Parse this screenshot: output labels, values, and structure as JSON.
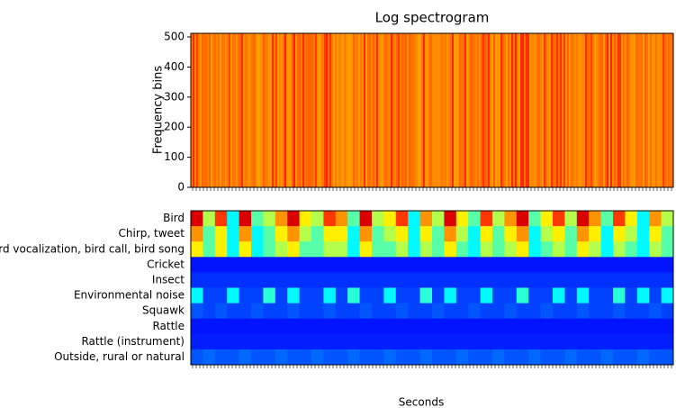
{
  "chart_data": [
    {
      "type": "spectrogram",
      "title": "Log spectrogram",
      "ylabel": "Frequency bins",
      "ylim": [
        0,
        512
      ],
      "yticks": [
        0,
        100,
        200,
        300,
        400,
        500
      ],
      "colormap": "autumn"
    },
    {
      "type": "heatmap",
      "xlabel": "Seconds",
      "colormap": "jet",
      "vlim": [
        0,
        1
      ],
      "series": [
        {
          "name": "Bird",
          "values": [
            0.9,
            0.5,
            0.8,
            0.3,
            0.9,
            0.4,
            0.5,
            0.7,
            0.9,
            0.6,
            0.5,
            0.8,
            0.7,
            0.4,
            0.9,
            0.5,
            0.6,
            0.8,
            0.3,
            0.7,
            0.5,
            0.9,
            0.6,
            0.4,
            0.8,
            0.5,
            0.7,
            0.9,
            0.4,
            0.6,
            0.8,
            0.5,
            0.9,
            0.7,
            0.4,
            0.8,
            0.6,
            0.3,
            0.7,
            0.5
          ]
        },
        {
          "name": "Chirp, tweet",
          "values": [
            0.7,
            0.4,
            0.6,
            0.3,
            0.7,
            0.3,
            0.4,
            0.6,
            0.7,
            0.5,
            0.4,
            0.6,
            0.6,
            0.3,
            0.7,
            0.4,
            0.5,
            0.6,
            0.3,
            0.6,
            0.4,
            0.7,
            0.5,
            0.3,
            0.6,
            0.4,
            0.6,
            0.7,
            0.3,
            0.5,
            0.6,
            0.4,
            0.7,
            0.6,
            0.3,
            0.6,
            0.5,
            0.3,
            0.6,
            0.4
          ]
        },
        {
          "name": "Bird vocalization, bird call, bird song",
          "values": [
            0.6,
            0.4,
            0.6,
            0.3,
            0.6,
            0.3,
            0.4,
            0.5,
            0.6,
            0.4,
            0.4,
            0.5,
            0.5,
            0.3,
            0.6,
            0.4,
            0.4,
            0.5,
            0.3,
            0.5,
            0.4,
            0.6,
            0.4,
            0.3,
            0.5,
            0.4,
            0.5,
            0.6,
            0.3,
            0.4,
            0.5,
            0.4,
            0.6,
            0.5,
            0.3,
            0.5,
            0.4,
            0.3,
            0.5,
            0.4
          ]
        },
        {
          "name": "Cricket",
          "values": [
            0.05,
            0.05,
            0.05,
            0.05,
            0.05,
            0.05,
            0.05,
            0.05,
            0.05,
            0.05,
            0.05,
            0.05,
            0.05,
            0.05,
            0.05,
            0.05,
            0.05,
            0.05,
            0.05,
            0.05,
            0.05,
            0.05,
            0.05,
            0.05,
            0.05,
            0.05,
            0.05,
            0.05,
            0.05,
            0.05,
            0.05,
            0.05,
            0.05,
            0.05,
            0.05,
            0.05,
            0.05,
            0.05,
            0.05,
            0.05
          ]
        },
        {
          "name": "Insect",
          "values": [
            0.08,
            0.08,
            0.08,
            0.08,
            0.08,
            0.08,
            0.08,
            0.08,
            0.08,
            0.08,
            0.08,
            0.08,
            0.08,
            0.08,
            0.08,
            0.08,
            0.08,
            0.08,
            0.08,
            0.08,
            0.08,
            0.08,
            0.08,
            0.08,
            0.08,
            0.08,
            0.08,
            0.08,
            0.08,
            0.08,
            0.08,
            0.08,
            0.08,
            0.08,
            0.08,
            0.08,
            0.08,
            0.08,
            0.08,
            0.08
          ]
        },
        {
          "name": "Environmental noise",
          "values": [
            0.3,
            0.1,
            0.1,
            0.3,
            0.1,
            0.1,
            0.35,
            0.1,
            0.3,
            0.1,
            0.1,
            0.3,
            0.1,
            0.35,
            0.1,
            0.1,
            0.3,
            0.1,
            0.1,
            0.35,
            0.1,
            0.3,
            0.1,
            0.1,
            0.3,
            0.1,
            0.1,
            0.35,
            0.1,
            0.1,
            0.3,
            0.1,
            0.3,
            0.1,
            0.1,
            0.35,
            0.1,
            0.3,
            0.1,
            0.3
          ]
        },
        {
          "name": "Squawk",
          "values": [
            0.12,
            0.1,
            0.12,
            0.1,
            0.1,
            0.12,
            0.1,
            0.1,
            0.12,
            0.1,
            0.1,
            0.12,
            0.1,
            0.1,
            0.12,
            0.1,
            0.1,
            0.12,
            0.1,
            0.1,
            0.12,
            0.1,
            0.1,
            0.12,
            0.1,
            0.1,
            0.12,
            0.1,
            0.1,
            0.12,
            0.1,
            0.1,
            0.12,
            0.1,
            0.1,
            0.12,
            0.1,
            0.1,
            0.12,
            0.1
          ]
        },
        {
          "name": "Rattle",
          "values": [
            0.05,
            0.05,
            0.05,
            0.05,
            0.05,
            0.05,
            0.05,
            0.05,
            0.05,
            0.05,
            0.05,
            0.05,
            0.05,
            0.05,
            0.05,
            0.05,
            0.05,
            0.05,
            0.05,
            0.05,
            0.05,
            0.05,
            0.05,
            0.05,
            0.05,
            0.05,
            0.05,
            0.05,
            0.05,
            0.05,
            0.05,
            0.05,
            0.05,
            0.05,
            0.05,
            0.05,
            0.05,
            0.05,
            0.05,
            0.05
          ]
        },
        {
          "name": "Rattle (instrument)",
          "values": [
            0.06,
            0.06,
            0.06,
            0.06,
            0.06,
            0.06,
            0.06,
            0.06,
            0.06,
            0.06,
            0.06,
            0.06,
            0.06,
            0.06,
            0.06,
            0.06,
            0.06,
            0.06,
            0.06,
            0.06,
            0.06,
            0.06,
            0.06,
            0.06,
            0.06,
            0.06,
            0.06,
            0.06,
            0.06,
            0.06,
            0.06,
            0.06,
            0.06,
            0.06,
            0.06,
            0.06,
            0.06,
            0.06,
            0.06,
            0.06
          ]
        },
        {
          "name": "Outside, rural or natural",
          "values": [
            0.12,
            0.14,
            0.12,
            0.12,
            0.14,
            0.12,
            0.12,
            0.14,
            0.12,
            0.12,
            0.14,
            0.12,
            0.12,
            0.14,
            0.12,
            0.12,
            0.14,
            0.12,
            0.12,
            0.14,
            0.12,
            0.12,
            0.14,
            0.12,
            0.12,
            0.14,
            0.12,
            0.12,
            0.14,
            0.12,
            0.12,
            0.14,
            0.12,
            0.12,
            0.14,
            0.12,
            0.12,
            0.14,
            0.12,
            0.12
          ]
        }
      ]
    }
  ]
}
